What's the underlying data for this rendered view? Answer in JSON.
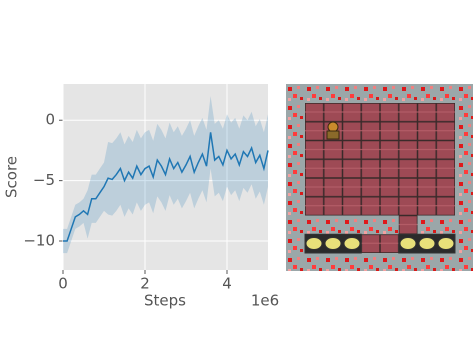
{
  "chart_data": {
    "type": "line",
    "xlabel": "Steps",
    "ylabel": "Score",
    "x_offset_label": "1e6",
    "x": [
      0,
      0.1,
      0.2,
      0.3,
      0.4,
      0.5,
      0.6,
      0.7,
      0.8,
      0.9,
      1.0,
      1.1,
      1.2,
      1.3,
      1.4,
      1.5,
      1.6,
      1.7,
      1.8,
      1.9,
      2.0,
      2.1,
      2.2,
      2.3,
      2.4,
      2.5,
      2.6,
      2.7,
      2.8,
      2.9,
      3.0,
      3.1,
      3.2,
      3.3,
      3.4,
      3.5,
      3.6,
      3.7,
      3.8,
      3.9,
      4.0,
      4.1,
      4.2,
      4.3,
      4.4,
      4.5,
      4.6,
      4.7,
      4.8,
      4.9,
      5.0
    ],
    "line": {
      "color": "#1f77b4",
      "values": [
        -10,
        -10,
        -9,
        -8,
        -7.8,
        -7.5,
        -7.8,
        -6.5,
        -6.5,
        -6,
        -5.5,
        -4.8,
        -4.9,
        -4.5,
        -4,
        -5,
        -4.3,
        -4.8,
        -3.8,
        -4.5,
        -4,
        -3.8,
        -4.7,
        -3.3,
        -3.8,
        -4.5,
        -3.2,
        -4,
        -3.5,
        -4.3,
        -3.7,
        -3,
        -4.3,
        -3.5,
        -2.8,
        -3.8,
        -1,
        -3.3,
        -3,
        -3.7,
        -2.5,
        -3.2,
        -2.8,
        -3.7,
        -2.6,
        -3,
        -2.3,
        -3.5,
        -2.9,
        -4,
        -2.5
      ]
    },
    "band": {
      "color": "#1f77b4",
      "lower": [
        -11,
        -11,
        -10,
        -9,
        -8.8,
        -8.5,
        -9.8,
        -8.5,
        -8.5,
        -8,
        -7.5,
        -7.8,
        -7.9,
        -7.5,
        -7,
        -8,
        -7.3,
        -7.8,
        -6.8,
        -7.5,
        -7,
        -6.8,
        -7.7,
        -6.3,
        -6.8,
        -7.5,
        -6.2,
        -7,
        -6.5,
        -7.3,
        -6.7,
        -6,
        -7.3,
        -6.5,
        -5.8,
        -6.8,
        -4,
        -6.3,
        -6,
        -6.7,
        -5.5,
        -6.2,
        -5.8,
        -6.7,
        -5.6,
        -6,
        -5.3,
        -6.5,
        -5.9,
        -7,
        -5.5
      ],
      "upper": [
        -9,
        -9,
        -8,
        -7,
        -6.8,
        -6.5,
        -5.8,
        -4.5,
        -4.5,
        -4,
        -3.5,
        -1.8,
        -1.9,
        -1.5,
        -1,
        -2,
        -1.3,
        -1.8,
        -0.8,
        -1.5,
        -1,
        -0.8,
        -1.7,
        -0.3,
        -0.8,
        -1.5,
        -0.2,
        -1,
        -0.5,
        -1.3,
        -0.7,
        0,
        -1.3,
        -0.5,
        0.2,
        -0.8,
        2,
        -0.3,
        0,
        -0.7,
        0.5,
        -0.2,
        0.2,
        -0.7,
        0.4,
        0,
        0.7,
        -0.5,
        0.1,
        -1,
        0.5
      ]
    },
    "xlim": [
      0,
      5
    ],
    "xticks": [
      0,
      2,
      4
    ],
    "ylim": [
      -12.4,
      3
    ],
    "yticks": [
      {
        "value": 0,
        "label": "0"
      },
      {
        "value": -5,
        "label": "−5"
      },
      {
        "value": -10,
        "label": "−10"
      }
    ],
    "grid": true
  }
}
